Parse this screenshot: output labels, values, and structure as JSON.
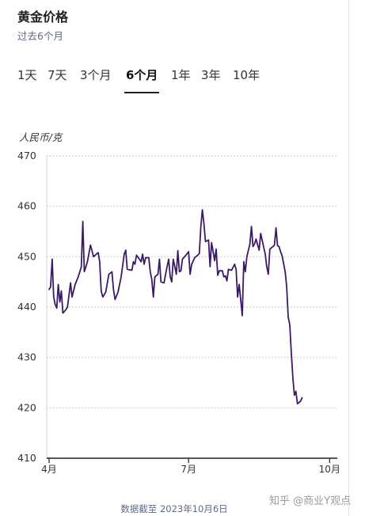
{
  "header": {
    "title": "黄金价格",
    "subtitle": "过去6个月"
  },
  "tabs": [
    {
      "label": "1天"
    },
    {
      "label": "7天"
    },
    {
      "label": "3个月"
    },
    {
      "label": "6个月",
      "active": true
    },
    {
      "label": "1年"
    },
    {
      "label": "3年"
    },
    {
      "label": "10年"
    }
  ],
  "footnote": "数据截至 2023年10月6日",
  "watermark": "知乎 @商业Y观点",
  "colors": {
    "line": "#3b1a66",
    "grid": "#c9c9d1",
    "text": "#202124"
  },
  "chart_data": {
    "type": "line",
    "title": "",
    "ylabel": "人民币/克",
    "xlabel": "",
    "ylim": [
      410,
      470
    ],
    "yticks": [
      410,
      420,
      430,
      440,
      450,
      460,
      470
    ],
    "xlim": [
      "2023-04-01",
      "2023-10-06"
    ],
    "xticks": [
      {
        "date": "2023-04-01",
        "label": "4月"
      },
      {
        "date": "2023-07-01",
        "label": "7月"
      },
      {
        "date": "2023-10-01",
        "label": "10月"
      }
    ],
    "grid": true,
    "series": [
      {
        "points": [
          [
            "2023-04-01",
            443.5
          ],
          [
            "2023-04-02",
            444
          ],
          [
            "2023-04-03",
            449.5
          ],
          [
            "2023-04-04",
            442
          ],
          [
            "2023-04-05",
            440.5
          ],
          [
            "2023-04-06",
            439.8
          ],
          [
            "2023-04-07",
            444.5
          ],
          [
            "2023-04-08",
            441
          ],
          [
            "2023-04-09",
            443.2
          ],
          [
            "2023-04-10",
            438.8
          ],
          [
            "2023-04-12",
            439.5
          ],
          [
            "2023-04-13",
            440
          ],
          [
            "2023-04-15",
            444.8
          ],
          [
            "2023-04-16",
            442
          ],
          [
            "2023-04-18",
            444.5
          ],
          [
            "2023-04-20",
            446
          ],
          [
            "2023-04-22",
            448
          ],
          [
            "2023-04-23",
            457
          ],
          [
            "2023-04-24",
            447
          ],
          [
            "2023-04-26",
            449
          ],
          [
            "2023-04-28",
            452.3
          ],
          [
            "2023-04-30",
            450
          ],
          [
            "2023-05-03",
            450.8
          ],
          [
            "2023-05-04",
            449
          ],
          [
            "2023-05-05",
            443.2
          ],
          [
            "2023-05-06",
            442
          ],
          [
            "2023-05-08",
            443
          ],
          [
            "2023-05-10",
            446.5
          ],
          [
            "2023-05-12",
            447
          ],
          [
            "2023-05-13",
            443.5
          ],
          [
            "2023-05-14",
            441.5
          ],
          [
            "2023-05-16",
            443
          ],
          [
            "2023-05-18",
            446
          ],
          [
            "2023-05-20",
            450.5
          ],
          [
            "2023-05-21",
            451.3
          ],
          [
            "2023-05-22",
            447.5
          ],
          [
            "2023-05-25",
            447.3
          ],
          [
            "2023-05-26",
            449
          ],
          [
            "2023-05-27",
            448.5
          ],
          [
            "2023-05-28",
            450.3
          ],
          [
            "2023-05-31",
            449
          ],
          [
            "2023-06-01",
            450.5
          ],
          [
            "2023-06-02",
            448.5
          ],
          [
            "2023-06-03",
            449.8
          ],
          [
            "2023-06-05",
            449.8
          ],
          [
            "2023-06-06",
            447
          ],
          [
            "2023-06-07",
            445.5
          ],
          [
            "2023-06-08",
            442
          ],
          [
            "2023-06-09",
            446
          ],
          [
            "2023-06-11",
            446.5
          ],
          [
            "2023-06-12",
            449.5
          ],
          [
            "2023-06-13",
            445
          ],
          [
            "2023-06-15",
            444.8
          ],
          [
            "2023-06-16",
            446.5
          ],
          [
            "2023-06-18",
            449.5
          ],
          [
            "2023-06-19",
            446
          ],
          [
            "2023-06-20",
            445
          ],
          [
            "2023-06-21",
            449.5
          ],
          [
            "2023-06-22",
            448
          ],
          [
            "2023-06-23",
            446.5
          ],
          [
            "2023-06-24",
            451.2
          ],
          [
            "2023-06-25",
            447
          ],
          [
            "2023-06-26",
            447.2
          ],
          [
            "2023-06-27",
            449.5
          ],
          [
            "2023-06-29",
            450.2
          ],
          [
            "2023-07-01",
            451
          ],
          [
            "2023-07-02",
            446.5
          ],
          [
            "2023-07-03",
            448.5
          ],
          [
            "2023-07-05",
            449.8
          ],
          [
            "2023-07-07",
            450.3
          ],
          [
            "2023-07-08",
            450.6
          ],
          [
            "2023-07-09",
            456
          ],
          [
            "2023-07-10",
            459.3
          ],
          [
            "2023-07-11",
            456.5
          ],
          [
            "2023-07-12",
            453
          ],
          [
            "2023-07-14",
            453.3
          ],
          [
            "2023-07-15",
            448
          ],
          [
            "2023-07-16",
            452.8
          ],
          [
            "2023-07-18",
            449.2
          ],
          [
            "2023-07-19",
            451.5
          ],
          [
            "2023-07-20",
            446.3
          ],
          [
            "2023-07-21",
            447.2
          ],
          [
            "2023-07-23",
            447.2
          ],
          [
            "2023-07-24",
            446
          ],
          [
            "2023-07-25",
            446.2
          ],
          [
            "2023-07-26",
            445.2
          ],
          [
            "2023-07-27",
            447.5
          ],
          [
            "2023-07-29",
            447.3
          ],
          [
            "2023-07-31",
            448.5
          ],
          [
            "2023-08-01",
            447.5
          ],
          [
            "2023-08-02",
            442
          ],
          [
            "2023-08-03",
            444.5
          ],
          [
            "2023-08-05",
            438.3
          ],
          [
            "2023-08-06",
            449
          ],
          [
            "2023-08-07",
            447
          ],
          [
            "2023-08-08",
            450
          ],
          [
            "2023-08-10",
            452.5
          ],
          [
            "2023-08-11",
            456
          ],
          [
            "2023-08-12",
            452
          ],
          [
            "2023-08-13",
            452.5
          ],
          [
            "2023-08-14",
            453.5
          ],
          [
            "2023-08-16",
            451.3
          ],
          [
            "2023-08-17",
            454.6
          ],
          [
            "2023-08-20",
            450.5
          ],
          [
            "2023-08-21",
            448
          ],
          [
            "2023-08-22",
            446.5
          ],
          [
            "2023-08-23",
            451.5
          ],
          [
            "2023-08-25",
            452
          ],
          [
            "2023-08-26",
            452.3
          ],
          [
            "2023-08-27",
            455.7
          ],
          [
            "2023-08-28",
            452.2
          ],
          [
            "2023-08-29",
            452
          ],
          [
            "2023-08-30",
            451
          ],
          [
            "2023-08-31",
            450.2
          ],
          [
            "2023-09-02",
            447
          ],
          [
            "2023-09-03",
            444
          ],
          [
            "2023-09-04",
            438
          ],
          [
            "2023-09-05",
            436.5
          ],
          [
            "2023-09-06",
            431
          ],
          [
            "2023-09-07",
            426
          ],
          [
            "2023-09-08",
            422.5
          ],
          [
            "2023-09-09",
            423.3
          ],
          [
            "2023-09-10",
            420.8
          ],
          [
            "2023-09-12",
            421.3
          ],
          [
            "2023-09-13",
            422
          ]
        ]
      }
    ]
  }
}
